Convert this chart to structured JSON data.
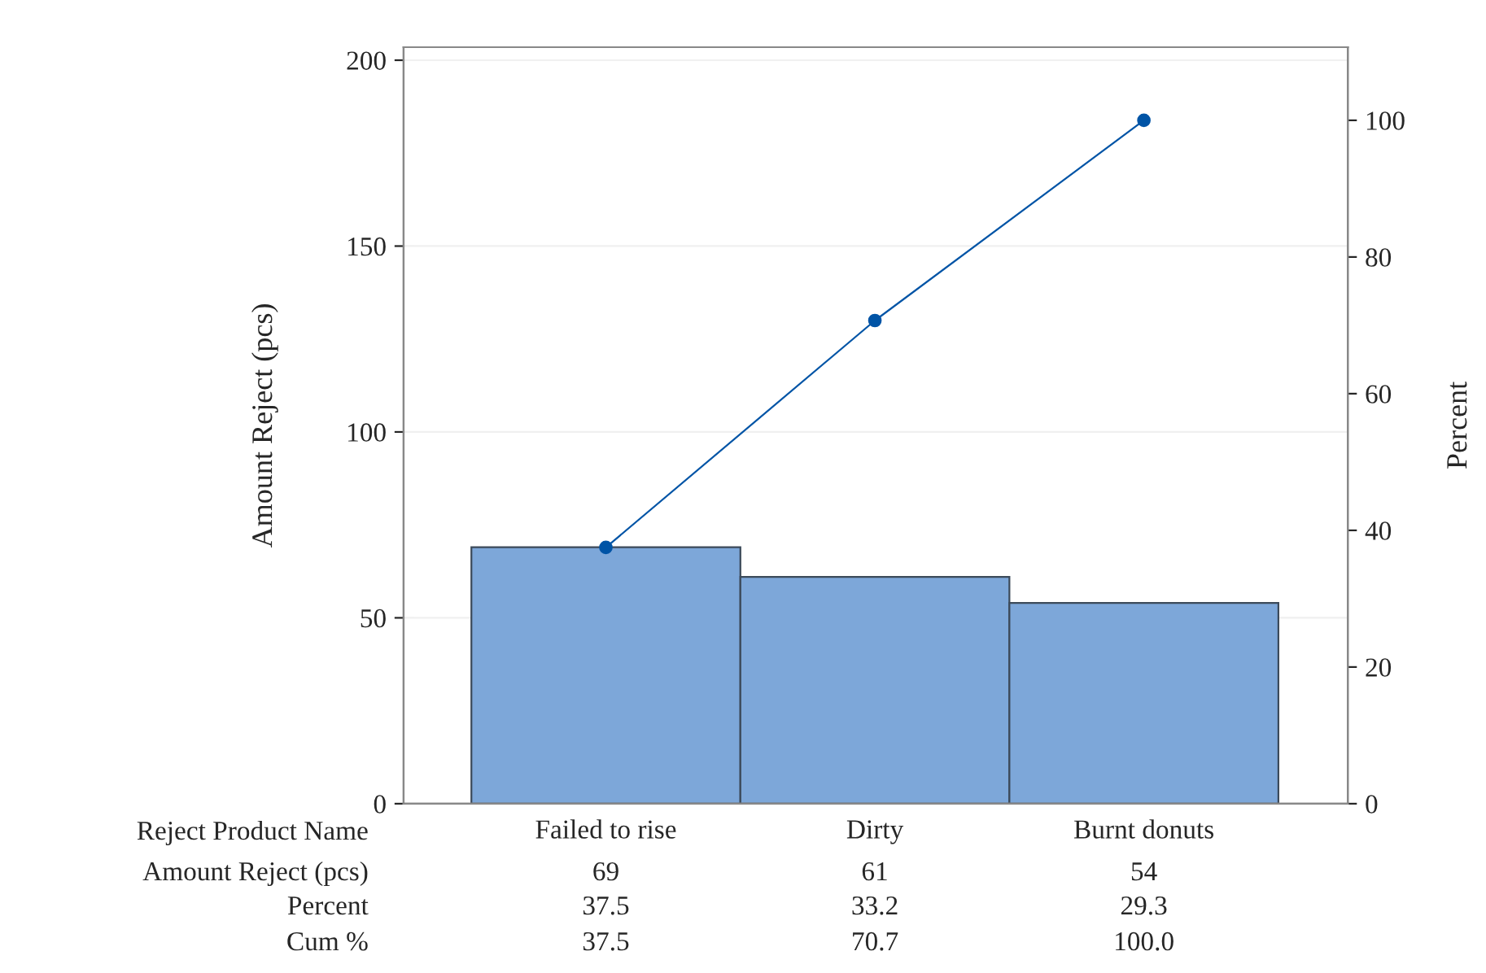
{
  "chart_data": {
    "type": "bar",
    "xlabel": "Reject Product Name",
    "ylabel": "Amount Reject (pcs)",
    "y2label": "Percent",
    "categories": [
      "Failed to rise",
      "Dirty",
      "Burnt donuts"
    ],
    "series": [
      {
        "color": "#7da7d9",
        "values": [
          69,
          61,
          54
        ],
        "value_labels": [
          "69",
          "61",
          "54"
        ]
      },
      {
        "type": "line",
        "axis": "y2",
        "color": "#0054a6",
        "marker": "circle",
        "values": [
          37.5,
          70.7,
          100.0
        ],
        "value_labels": [
          "37.5",
          "70.7",
          "100.0"
        ]
      }
    ],
    "annotations": [
      "Amount Reject (pcs)",
      "Percent",
      "37.5",
      "33.2",
      "29.3",
      "Cum %"
    ],
    "ylim": [
      0,
      203.5
    ],
    "yticks": [
      0,
      50,
      100,
      150,
      200
    ],
    "y2lim": [
      0,
      110.7
    ],
    "y2ticks": [
      0,
      20,
      40,
      60,
      80,
      100
    ],
    "grid": "y",
    "legend": false
  }
}
